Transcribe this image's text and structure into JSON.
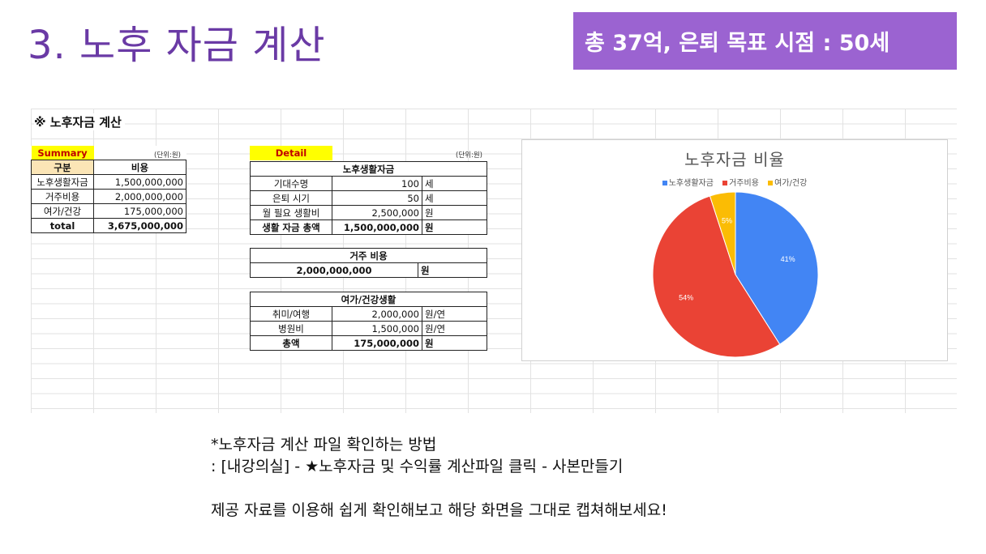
{
  "title": "3. 노후 자금 계산",
  "badge": "총 37억, 은퇴 목표 시점 : 50세",
  "sheet": {
    "title": "※ 노후자금 계산",
    "summary": {
      "label": "Summary",
      "unit": "(단위:원)",
      "headers": [
        "구분",
        "비용"
      ],
      "rows": [
        {
          "name": "노후생활자금",
          "value": "1,500,000,000"
        },
        {
          "name": "거주비용",
          "value": "2,000,000,000"
        },
        {
          "name": "여가/건강",
          "value": "175,000,000"
        }
      ],
      "total_label": "total",
      "total_value": "3,675,000,000"
    },
    "detail": {
      "label": "Detail",
      "unit": "(단위:원)",
      "living": {
        "header": "노후생활자금",
        "rows": [
          {
            "name": "기대수명",
            "value": "100",
            "unit": "세"
          },
          {
            "name": "은퇴 시기",
            "value": "50",
            "unit": "세"
          },
          {
            "name": "월 필요 생활비",
            "value": "2,500,000",
            "unit": "원"
          },
          {
            "name": "생활 자금 총액",
            "value": "1,500,000,000",
            "unit": "원"
          }
        ]
      },
      "housing": {
        "header": "거주 비용",
        "value": "2,000,000,000",
        "unit": "원"
      },
      "leisure": {
        "header": "여가/건강생활",
        "rows": [
          {
            "name": "취미/여행",
            "value": "2,000,000",
            "unit": "원/연"
          },
          {
            "name": "병원비",
            "value": "1,500,000",
            "unit": "원/연"
          },
          {
            "name": "총액",
            "value": "175,000,000",
            "unit": "원"
          }
        ]
      }
    }
  },
  "chart_data": {
    "type": "pie",
    "title": "노후자금 비율",
    "categories": [
      "노후생활자금",
      "거주비용",
      "여가/건강"
    ],
    "values": [
      41,
      54,
      5
    ],
    "labels": [
      "41%",
      "54%",
      "5%"
    ],
    "colors": [
      "#4285f4",
      "#ea4335",
      "#fbbc04"
    ],
    "legend": "top"
  },
  "notes": {
    "line1": "*노후자금 계산 파일 확인하는 방법",
    "line2": ": [내강의실] - ★노후자금 및 수익률 계산파일 클릭 - 사본만들기",
    "line3": "제공 자료를 이용해 쉽게 확인해보고 해당 화면을 그대로 캡쳐해보세요!"
  }
}
